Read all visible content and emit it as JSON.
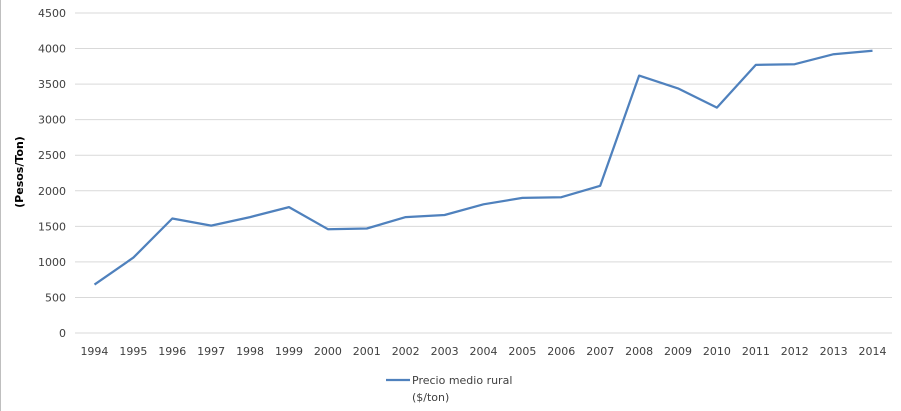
{
  "chart_data": {
    "type": "line",
    "ylabel": "(Pesos/Ton)",
    "xlabel": "",
    "ylim": [
      0,
      4500
    ],
    "y_ticks": [
      0,
      500,
      1000,
      1500,
      2000,
      2500,
      3000,
      3500,
      4000,
      4500
    ],
    "grid": true,
    "legend_position": "bottom",
    "categories": [
      "1994",
      "1995",
      "1996",
      "1997",
      "1998",
      "1999",
      "2000",
      "2001",
      "2002",
      "2003",
      "2004",
      "2005",
      "2006",
      "2007",
      "2008",
      "2009",
      "2010",
      "2011",
      "2012",
      "2013",
      "2014"
    ],
    "series": [
      {
        "name": "Precio medio rural ($/ton)",
        "legend_lines": [
          "Precio medio rural",
          "($/ton)"
        ],
        "color": "#4f81bd",
        "values": [
          680,
          1060,
          1610,
          1510,
          1630,
          1770,
          1460,
          1470,
          1630,
          1660,
          1810,
          1900,
          1910,
          2070,
          3620,
          3440,
          3170,
          3770,
          3780,
          3920,
          3970
        ]
      }
    ]
  }
}
